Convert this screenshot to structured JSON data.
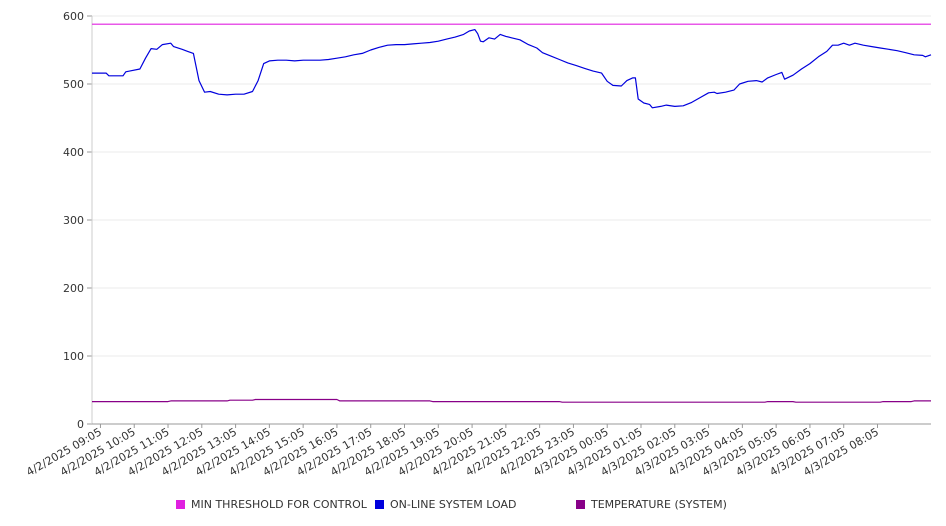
{
  "chart_data": {
    "type": "line",
    "ylim": [
      0,
      600
    ],
    "yticks": [
      0,
      100,
      200,
      300,
      400,
      500,
      600
    ],
    "xlim": [
      "4/2/2025 08:50",
      "4/3/2025 09:40"
    ],
    "x_tick_labels": [
      "4/2/2025 09:05",
      "4/2/2025 10:05",
      "4/2/2025 11:05",
      "4/2/2025 12:05",
      "4/2/2025 13:05",
      "4/2/2025 14:05",
      "4/2/2025 15:05",
      "4/2/2025 16:05",
      "4/2/2025 17:05",
      "4/2/2025 18:05",
      "4/2/2025 19:05",
      "4/2/2025 20:05",
      "4/2/2025 21:05",
      "4/2/2025 22:05",
      "4/2/2025 23:05",
      "4/3/2025 00:05",
      "4/3/2025 01:05",
      "4/3/2025 02:05",
      "4/3/2025 03:05",
      "4/3/2025 04:05",
      "4/3/2025 05:05",
      "4/3/2025 06:05",
      "4/3/2025 07:05",
      "4/3/2025 08:05"
    ],
    "grid": true,
    "legend_position": "bottom",
    "series": [
      {
        "name": "MIN THRESHOLD FOR CONTROL",
        "color": "#e020e0",
        "points": [
          [
            "4/2/2025 08:50",
            588
          ],
          [
            "4/3/2025 09:40",
            588
          ]
        ]
      },
      {
        "name": "ON-LINE SYSTEM LOAD",
        "color": "#0000dd",
        "points": [
          [
            "4/2/2025 08:50",
            516
          ],
          [
            "4/2/2025 09:15",
            516
          ],
          [
            "4/2/2025 09:20",
            512
          ],
          [
            "4/2/2025 09:45",
            512
          ],
          [
            "4/2/2025 09:50",
            518
          ],
          [
            "4/2/2025 10:15",
            522
          ],
          [
            "4/2/2025 10:25",
            538
          ],
          [
            "4/2/2025 10:35",
            552
          ],
          [
            "4/2/2025 10:45",
            551
          ],
          [
            "4/2/2025 10:55",
            558
          ],
          [
            "4/2/2025 11:10",
            560
          ],
          [
            "4/2/2025 11:15",
            555
          ],
          [
            "4/2/2025 11:30",
            551
          ],
          [
            "4/2/2025 11:40",
            548
          ],
          [
            "4/2/2025 11:50",
            545
          ],
          [
            "4/2/2025 11:55",
            525
          ],
          [
            "4/2/2025 12:00",
            505
          ],
          [
            "4/2/2025 12:10",
            488
          ],
          [
            "4/2/2025 12:20",
            489
          ],
          [
            "4/2/2025 12:35",
            485
          ],
          [
            "4/2/2025 12:50",
            484
          ],
          [
            "4/2/2025 13:05",
            485
          ],
          [
            "4/2/2025 13:20",
            485
          ],
          [
            "4/2/2025 13:35",
            489
          ],
          [
            "4/2/2025 13:45",
            505
          ],
          [
            "4/2/2025 13:55",
            530
          ],
          [
            "4/2/2025 14:05",
            534
          ],
          [
            "4/2/2025 14:20",
            535
          ],
          [
            "4/2/2025 14:35",
            535
          ],
          [
            "4/2/2025 14:50",
            534
          ],
          [
            "4/2/2025 15:05",
            535
          ],
          [
            "4/2/2025 15:35",
            535
          ],
          [
            "4/2/2025 15:50",
            536
          ],
          [
            "4/2/2025 16:05",
            538
          ],
          [
            "4/2/2025 16:20",
            540
          ],
          [
            "4/2/2025 16:35",
            543
          ],
          [
            "4/2/2025 16:50",
            545
          ],
          [
            "4/2/2025 17:05",
            550
          ],
          [
            "4/2/2025 17:20",
            554
          ],
          [
            "4/2/2025 17:35",
            557
          ],
          [
            "4/2/2025 17:50",
            558
          ],
          [
            "4/2/2025 18:05",
            558
          ],
          [
            "4/2/2025 18:20",
            559
          ],
          [
            "4/2/2025 18:35",
            560
          ],
          [
            "4/2/2025 18:50",
            561
          ],
          [
            "4/2/2025 19:05",
            563
          ],
          [
            "4/2/2025 19:20",
            566
          ],
          [
            "4/2/2025 19:35",
            569
          ],
          [
            "4/2/2025 19:50",
            573
          ],
          [
            "4/2/2025 20:00",
            578
          ],
          [
            "4/2/2025 20:10",
            580
          ],
          [
            "4/2/2025 20:15",
            574
          ],
          [
            "4/2/2025 20:20",
            563
          ],
          [
            "4/2/2025 20:25",
            562
          ],
          [
            "4/2/2025 20:35",
            568
          ],
          [
            "4/2/2025 20:45",
            566
          ],
          [
            "4/2/2025 20:55",
            573
          ],
          [
            "4/2/2025 21:05",
            570
          ],
          [
            "4/2/2025 21:15",
            568
          ],
          [
            "4/2/2025 21:30",
            565
          ],
          [
            "4/2/2025 21:45",
            558
          ],
          [
            "4/2/2025 22:00",
            553
          ],
          [
            "4/2/2025 22:10",
            546
          ],
          [
            "4/2/2025 22:25",
            541
          ],
          [
            "4/2/2025 22:40",
            536
          ],
          [
            "4/2/2025 22:55",
            531
          ],
          [
            "4/2/2025 23:10",
            527
          ],
          [
            "4/2/2025 23:25",
            523
          ],
          [
            "4/2/2025 23:40",
            519
          ],
          [
            "4/2/2025 23:55",
            516
          ],
          [
            "4/3/2025 00:05",
            504
          ],
          [
            "4/3/2025 00:15",
            498
          ],
          [
            "4/3/2025 00:30",
            497
          ],
          [
            "4/3/2025 00:40",
            505
          ],
          [
            "4/3/2025 00:50",
            509
          ],
          [
            "4/3/2025 00:55",
            509
          ],
          [
            "4/3/2025 01:00",
            478
          ],
          [
            "4/3/2025 01:10",
            472
          ],
          [
            "4/3/2025 01:20",
            470
          ],
          [
            "4/3/2025 01:25",
            465
          ],
          [
            "4/3/2025 01:40",
            467
          ],
          [
            "4/3/2025 01:50",
            469
          ],
          [
            "4/3/2025 02:05",
            467
          ],
          [
            "4/3/2025 02:20",
            468
          ],
          [
            "4/3/2025 02:35",
            473
          ],
          [
            "4/3/2025 02:50",
            480
          ],
          [
            "4/3/2025 03:05",
            487
          ],
          [
            "4/3/2025 03:15",
            488
          ],
          [
            "4/3/2025 03:20",
            486
          ],
          [
            "4/3/2025 03:35",
            488
          ],
          [
            "4/3/2025 03:50",
            491
          ],
          [
            "4/3/2025 04:00",
            500
          ],
          [
            "4/3/2025 04:15",
            504
          ],
          [
            "4/3/2025 04:30",
            505
          ],
          [
            "4/3/2025 04:40",
            503
          ],
          [
            "4/3/2025 04:50",
            509
          ],
          [
            "4/3/2025 05:05",
            514
          ],
          [
            "4/3/2025 05:15",
            517
          ],
          [
            "4/3/2025 05:20",
            507
          ],
          [
            "4/3/2025 05:35",
            513
          ],
          [
            "4/3/2025 05:50",
            522
          ],
          [
            "4/3/2025 06:05",
            530
          ],
          [
            "4/3/2025 06:20",
            540
          ],
          [
            "4/3/2025 06:35",
            548
          ],
          [
            "4/3/2025 06:45",
            557
          ],
          [
            "4/3/2025 06:55",
            557
          ],
          [
            "4/3/2025 07:05",
            560
          ],
          [
            "4/3/2025 07:15",
            557
          ],
          [
            "4/3/2025 07:25",
            560
          ],
          [
            "4/3/2025 07:40",
            557
          ],
          [
            "4/3/2025 07:55",
            555
          ],
          [
            "4/3/2025 08:10",
            553
          ],
          [
            "4/3/2025 08:25",
            551
          ],
          [
            "4/3/2025 08:40",
            549
          ],
          [
            "4/3/2025 08:55",
            546
          ],
          [
            "4/3/2025 09:10",
            543
          ],
          [
            "4/3/2025 09:25",
            542
          ],
          [
            "4/3/2025 09:30",
            540
          ],
          [
            "4/3/2025 09:40",
            543
          ]
        ]
      },
      {
        "name": "TEMPERATURE (SYSTEM)",
        "color": "#880088",
        "points": [
          [
            "4/2/2025 08:50",
            33
          ],
          [
            "4/2/2025 11:05",
            33
          ],
          [
            "4/2/2025 11:10",
            34
          ],
          [
            "4/2/2025 12:50",
            34
          ],
          [
            "4/2/2025 12:55",
            35
          ],
          [
            "4/2/2025 13:35",
            35
          ],
          [
            "4/2/2025 13:40",
            36
          ],
          [
            "4/2/2025 16:05",
            36
          ],
          [
            "4/2/2025 16:10",
            34
          ],
          [
            "4/2/2025 18:50",
            34
          ],
          [
            "4/2/2025 18:55",
            33
          ],
          [
            "4/2/2025 20:50",
            33
          ],
          [
            "4/2/2025 21:15",
            33
          ],
          [
            "4/2/2025 22:40",
            33
          ],
          [
            "4/2/2025 22:45",
            32
          ],
          [
            "4/3/2025 04:45",
            32
          ],
          [
            "4/3/2025 04:50",
            33
          ],
          [
            "4/3/2025 05:35",
            33
          ],
          [
            "4/3/2025 05:40",
            32
          ],
          [
            "4/3/2025 08:10",
            32
          ],
          [
            "4/3/2025 08:15",
            33
          ],
          [
            "4/3/2025 09:05",
            33
          ],
          [
            "4/3/2025 09:10",
            34
          ],
          [
            "4/3/2025 09:40",
            34
          ]
        ]
      }
    ]
  }
}
